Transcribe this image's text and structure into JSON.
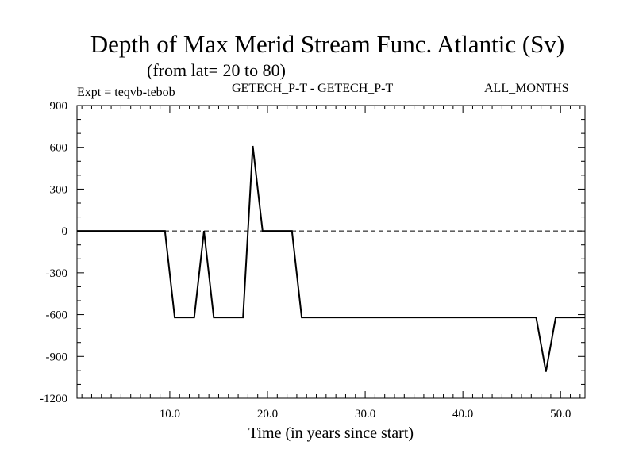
{
  "chart_data": {
    "type": "line",
    "title": "Depth of Max Merid Stream Func. Atlantic (Sv)",
    "subtitle": "(from lat= 20 to 80)",
    "annotations": {
      "left": "Expt = teqvb-tebob",
      "center": "GETECH_P-T - GETECH_P-T",
      "right": "ALL_MONTHS"
    },
    "xlabel": "Time (in years since start)",
    "ylabel": "",
    "xlim": [
      0.5,
      52.5
    ],
    "ylim": [
      -1200,
      900
    ],
    "xticks": [
      10,
      20,
      30,
      40,
      50
    ],
    "xtick_labels": [
      "10.0",
      "20.0",
      "30.0",
      "40.0",
      "50.0"
    ],
    "yticks": [
      900,
      600,
      300,
      0,
      -300,
      -600,
      -900,
      -1200
    ],
    "ytick_labels": [
      "900",
      "600",
      "300",
      "0",
      "-300",
      "-600",
      "-900",
      "-1200"
    ],
    "zero_line": "dashed",
    "grid": false,
    "series": [
      {
        "x": [
          0.5,
          1.5,
          2.5,
          3.5,
          4.5,
          5.5,
          6.5,
          7.5,
          8.5,
          9.5,
          10.5,
          11.5,
          12.5,
          13.5,
          14.5,
          15.5,
          16.5,
          17.5,
          18.5,
          19.5,
          20.5,
          21.5,
          22.5,
          23.5,
          24.5,
          25.5,
          26.5,
          27.5,
          28.5,
          29.5,
          30.5,
          31.5,
          32.5,
          33.5,
          34.5,
          35.5,
          36.5,
          37.5,
          38.5,
          39.5,
          40.5,
          41.5,
          42.5,
          43.5,
          44.5,
          45.5,
          46.5,
          47.5,
          48.5,
          49.5,
          50.5,
          51.5,
          52.5
        ],
        "values": [
          0,
          0,
          0,
          0,
          0,
          0,
          0,
          0,
          0,
          0,
          -620,
          -620,
          -620,
          0,
          -620,
          -620,
          -620,
          -620,
          610,
          0,
          0,
          0,
          0,
          -620,
          -620,
          -620,
          -620,
          -620,
          -620,
          -620,
          -620,
          -620,
          -620,
          -620,
          -620,
          -620,
          -620,
          -620,
          -620,
          -620,
          -620,
          -620,
          -620,
          -620,
          -620,
          -620,
          -620,
          -620,
          -1010,
          -620,
          -620,
          -620,
          -620
        ]
      }
    ]
  }
}
